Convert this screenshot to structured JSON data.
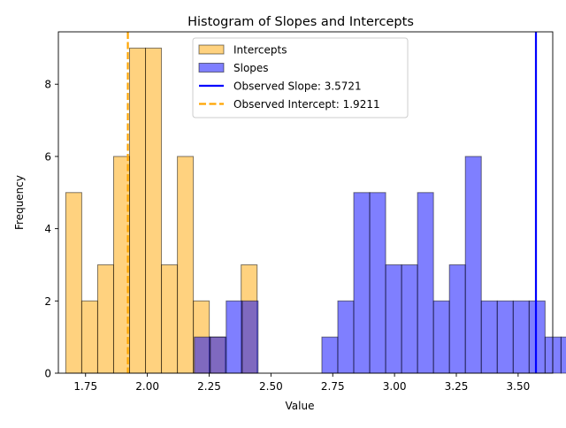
{
  "chart_data": {
    "type": "bar",
    "title": "Histogram of Slopes and Intercepts",
    "xlabel": "Value",
    "ylabel": "Frequency",
    "xlim": [
      1.64,
      3.64
    ],
    "ylim": [
      0,
      9.45
    ],
    "x_ticks": [
      {
        "value": 1.75,
        "label": "1.75"
      },
      {
        "value": 2.0,
        "label": "2.00"
      },
      {
        "value": 2.25,
        "label": "2.25"
      },
      {
        "value": 2.5,
        "label": "2.50"
      },
      {
        "value": 2.75,
        "label": "2.75"
      },
      {
        "value": 3.0,
        "label": "3.00"
      },
      {
        "value": 3.25,
        "label": "3.25"
      },
      {
        "value": 3.5,
        "label": "3.50"
      }
    ],
    "y_ticks": [
      {
        "value": 0,
        "label": "0"
      },
      {
        "value": 2,
        "label": "2"
      },
      {
        "value": 4,
        "label": "4"
      },
      {
        "value": 6,
        "label": "6"
      },
      {
        "value": 8,
        "label": "8"
      }
    ],
    "grid": false,
    "legend_position": "top-center",
    "series": [
      {
        "name": "Intercepts",
        "color": "#ffa500",
        "bin_start": 1.67,
        "bin_width": 0.0645,
        "counts": [
          5,
          2,
          3,
          6,
          9,
          9,
          3,
          6,
          2,
          1,
          0,
          3
        ]
      },
      {
        "name": "Slopes",
        "color": "#0000ff",
        "bin_start": 2.19,
        "bin_width": 0.0645,
        "counts": [
          1,
          1,
          2,
          2,
          0,
          0,
          0,
          0,
          1,
          2,
          5,
          5,
          3,
          3,
          5,
          2,
          3,
          6,
          2,
          2,
          2,
          2,
          1,
          1
        ]
      }
    ],
    "reference_lines": [
      {
        "name": "Observed Slope: 3.5721",
        "x": 3.5721,
        "color": "#0000ff",
        "style": "solid"
      },
      {
        "name": "Observed Intercept: 1.9211",
        "x": 1.9211,
        "color": "#ffa500",
        "style": "dashed"
      }
    ]
  }
}
